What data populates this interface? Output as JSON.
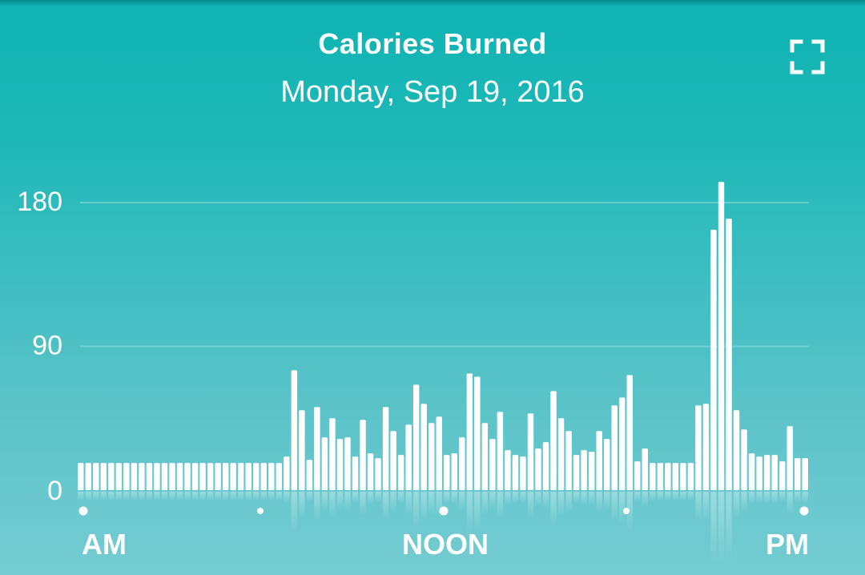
{
  "header": {
    "title": "Calories Burned",
    "subtitle": "Monday, Sep 19, 2016"
  },
  "icons": {
    "expand": "fullscreen-expand-icon"
  },
  "colors": {
    "bar": "#ffffff",
    "gridline": "#7fd9d9"
  },
  "chart_data": {
    "type": "bar",
    "title": "Calories Burned",
    "subtitle": "Monday, Sep 19, 2016",
    "yticks": [
      "180",
      "90",
      "0"
    ],
    "ytick_values": [
      180,
      90,
      0
    ],
    "ylim": [
      0,
      190
    ],
    "xtick_labels": [
      "AM",
      "NOON",
      "PM"
    ],
    "grid": true,
    "values": [
      17,
      17,
      17,
      17,
      17,
      17,
      17,
      17,
      17,
      17,
      17,
      17,
      17,
      17,
      17,
      17,
      17,
      17,
      17,
      17,
      17,
      17,
      17,
      17,
      17,
      17,
      17,
      21,
      75,
      50,
      19,
      52,
      33,
      45,
      32,
      33,
      21,
      44,
      23,
      20,
      52,
      37,
      22,
      41,
      66,
      54,
      42,
      46,
      22,
      23,
      33,
      73,
      71,
      42,
      32,
      49,
      25,
      22,
      21,
      48,
      26,
      30,
      62,
      45,
      37,
      22,
      25,
      24,
      37,
      32,
      53,
      58,
      72,
      18,
      26,
      17,
      17,
      17,
      17,
      17,
      17,
      53,
      54,
      163,
      193,
      170,
      50,
      38,
      23,
      21,
      22,
      22,
      18,
      40,
      20,
      20
    ]
  }
}
